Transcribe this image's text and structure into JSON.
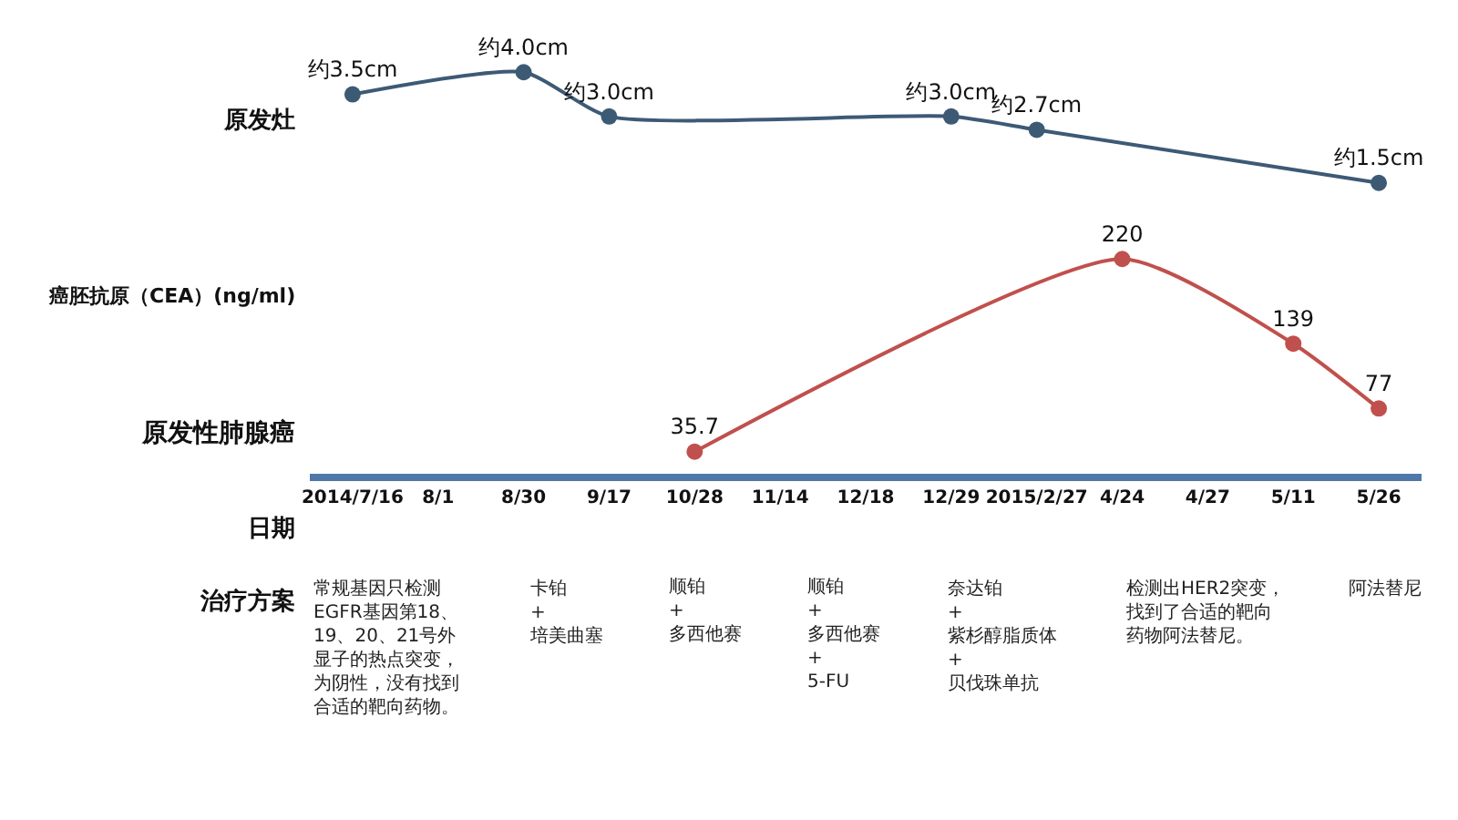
{
  "chart_data": [
    {
      "type": "line",
      "ylabel": "原发灶",
      "categories": [
        null,
        null,
        null,
        null,
        null,
        null,
        null,
        null,
        null,
        null,
        null,
        null,
        null
      ],
      "series": [
        {
          "color": "#3d5a75",
          "values": [
            3.5,
            null,
            4.0,
            3.0,
            null,
            null,
            null,
            3.0,
            2.7,
            null,
            null,
            null,
            1.5
          ],
          "value_labels": [
            "约3.5cm",
            null,
            "约4.0cm",
            "约3.0cm",
            null,
            null,
            null,
            "约3.0cm",
            "约2.7cm",
            null,
            null,
            null,
            "约1.5cm"
          ]
        }
      ],
      "tick_labels": false,
      "marker": "circle"
    },
    {
      "type": "line",
      "title": "原发性肺腺癌",
      "subtitle": "治疗方案",
      "xlabel": "日期",
      "ylabel": "癌胚抗原（CEA）(ng/ml)",
      "categories": [
        "2014/7/16",
        "8/1",
        "8/30",
        "9/17",
        "10/28",
        "11/14",
        "12/18",
        "12/29",
        "2015/2/27",
        "4/24",
        "4/27",
        "5/11",
        "5/26"
      ],
      "series": [
        {
          "color": "#c0504d",
          "values": [
            null,
            null,
            null,
            null,
            35.7,
            null,
            null,
            null,
            null,
            220,
            null,
            139,
            77
          ],
          "value_labels": [
            null,
            null,
            null,
            null,
            "35.7",
            null,
            null,
            null,
            null,
            "220",
            null,
            "139",
            "77"
          ]
        }
      ],
      "tick_labels": "x",
      "marker": "circle",
      "annotations": [
        "常规基因只检测EGFR基因第18、19、20、21号外显子的热点突变，为阴性，没有找到合适的靶向药物。",
        "卡铂\n+\n培美曲塞",
        "顺铂\n+\n多西他赛",
        "顺铂\n+\n多西他赛\n+\n5-FU",
        "奈达铂\n+\n紫杉醇脂质体\n+\n贝伐珠单抗",
        "检测出HER2突变，找到了合适的靶向药物阿法替尼。",
        "阿法替尼"
      ]
    }
  ]
}
